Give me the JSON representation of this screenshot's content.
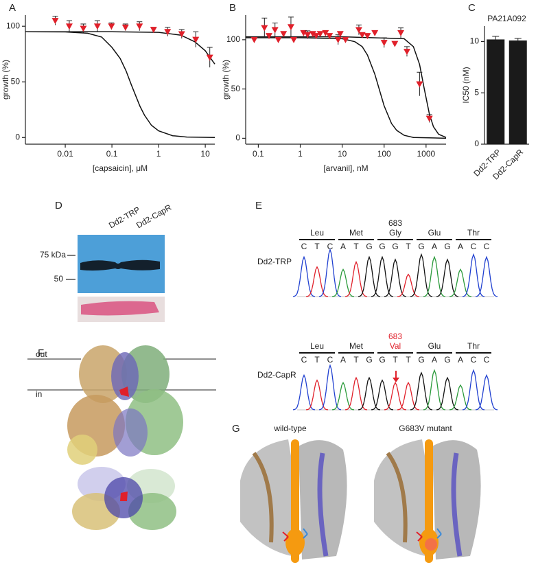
{
  "chart_data": [
    {
      "type": "scatter",
      "panel": "A",
      "x_label": "[capsaicin], μM",
      "y_label": "growth  (%)",
      "log_x": true,
      "xlim": [
        0.0014,
        16
      ],
      "ylim": [
        -6,
        110
      ],
      "xticks": [
        0.01,
        0.1,
        1,
        10
      ],
      "yticks": [
        0,
        50,
        100
      ],
      "color": "#e0202a",
      "x": [
        0.0061,
        0.0122,
        0.0244,
        0.0488,
        0.0977,
        0.195,
        0.39,
        0.78,
        1.56,
        3.125,
        6.25,
        12.5
      ],
      "values": [
        105,
        100,
        98,
        100,
        100,
        99,
        100,
        97,
        95,
        93,
        88,
        72
      ],
      "errors": [
        4,
        5,
        4,
        5,
        3,
        3,
        4,
        2,
        4,
        4,
        7,
        9
      ],
      "curves": [
        {
          "x": [
            0.0014,
            0.01,
            0.03,
            0.06,
            0.1,
            0.15,
            0.2,
            0.26,
            0.3,
            0.4,
            0.5,
            0.7,
            1,
            2,
            4,
            16
          ],
          "values": [
            95,
            94.9,
            93.7,
            90.3,
            81,
            71,
            60,
            47.5,
            41,
            28,
            20,
            11,
            6,
            1.6,
            0.4,
            0
          ]
        },
        {
          "x": [
            0.0014,
            0.1,
            1,
            3,
            6,
            10,
            16
          ],
          "values": [
            95,
            95,
            94.5,
            92,
            86,
            78,
            66
          ]
        }
      ]
    },
    {
      "type": "scatter",
      "panel": "B",
      "x_label": "[arvanil], nM",
      "y_label": "growth  (%)",
      "log_x": true,
      "xlim": [
        0.05,
        3000
      ],
      "ylim": [
        -6,
        125
      ],
      "xticks": [
        0.1,
        1,
        10,
        100,
        1000
      ],
      "yticks": [
        0,
        50,
        100
      ],
      "color": "#e0202a",
      "x": [
        0.08,
        0.14,
        0.18,
        0.25,
        0.3,
        0.4,
        0.6,
        0.7,
        1.2,
        1.5,
        2,
        2.4,
        3,
        4,
        5,
        8,
        9,
        12,
        25,
        30,
        40,
        60,
        100,
        180,
        250,
        350,
        700,
        1200
      ],
      "values": [
        100,
        112,
        104,
        110,
        100,
        106,
        113,
        100,
        107,
        105,
        106,
        104,
        106,
        107,
        104,
        100,
        106,
        100,
        110,
        105,
        104,
        107,
        97,
        96,
        107,
        88,
        55,
        20
      ],
      "errors": [
        null,
        10,
        null,
        7,
        null,
        null,
        10,
        null,
        null,
        4,
        null,
        null,
        null,
        null,
        null,
        5,
        null,
        null,
        5,
        null,
        null,
        null,
        5,
        null,
        5,
        5,
        12,
        4
      ],
      "curves": [
        {
          "x": [
            0.05,
            1,
            10,
            20,
            30,
            40,
            60,
            80,
            100,
            150,
            200,
            300,
            500,
            3000
          ],
          "values": [
            102,
            102,
            101,
            98,
            93,
            84.5,
            65,
            47,
            33,
            15,
            8,
            3,
            0.8,
            0
          ]
        },
        {
          "x": [
            0.05,
            10,
            300,
            500,
            700,
            900,
            1200,
            1500,
            2000,
            3000
          ],
          "values": [
            103,
            103,
            101,
            93,
            75,
            51,
            24.5,
            11.7,
            4,
            0.8
          ]
        }
      ]
    },
    {
      "type": "bar",
      "panel": "C",
      "title": "PA21A092",
      "y_label": "IC50 (nM)",
      "categories": [
        "Dd2-TRP",
        "Dd2-CapR"
      ],
      "values": [
        10.2,
        10.1
      ],
      "errors": [
        0.3,
        0.2
      ],
      "color": "#1a1a1a",
      "ylim": [
        0,
        11.5
      ],
      "yticks": [
        0,
        5,
        10
      ]
    }
  ],
  "blot": {
    "panel": "D",
    "lanes": [
      "Dd2-TRP",
      "Dd2-CapR"
    ],
    "markers": [
      "75 kDa",
      "50"
    ]
  },
  "sequencing": {
    "panel": "E",
    "traces": [
      {
        "label": "Dd2-TRP",
        "position": "683",
        "codons": [
          "Leu",
          "Met",
          "Gly",
          "Glu",
          "Thr"
        ],
        "bases": [
          "C",
          "T",
          "C",
          "A",
          "T",
          "G",
          "G",
          "G",
          "T",
          "G",
          "A",
          "G",
          "A",
          "C",
          "C"
        ]
      },
      {
        "label": "Dd2-CapR",
        "position": "683",
        "codons": [
          "Leu",
          "Met",
          "Val",
          "Glu",
          "Thr"
        ],
        "bases": [
          "C",
          "T",
          "C",
          "A",
          "T",
          "G",
          "G",
          "T",
          "T",
          "G",
          "A",
          "G",
          "A",
          "C",
          "C"
        ]
      }
    ]
  },
  "structure": {
    "panel": "F",
    "membrane": [
      "out",
      "in"
    ]
  },
  "pore": {
    "panel": "G",
    "views": [
      "wild-type",
      "G683V mutant"
    ]
  }
}
